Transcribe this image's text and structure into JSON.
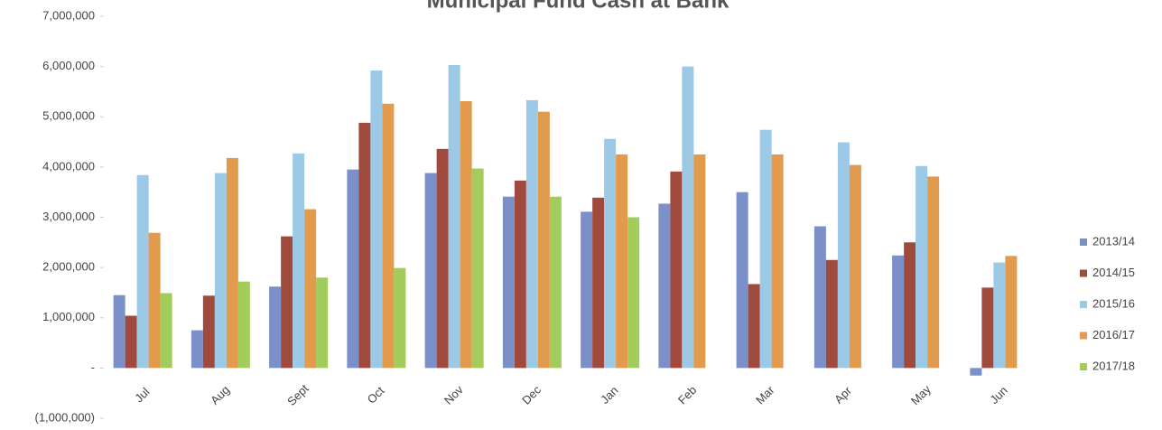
{
  "chart_data": {
    "type": "bar",
    "title": "Municipal Fund Cash at Bank",
    "categories": [
      "Jul",
      "Aug",
      "Sept",
      "Oct",
      "Nov",
      "Dec",
      "Jan",
      "Feb",
      "Mar",
      "Apr",
      "May",
      "Jun"
    ],
    "series": [
      {
        "name": "2013/14",
        "color": "#7b8fc9",
        "values": [
          1450000,
          750000,
          1620000,
          3950000,
          3880000,
          3410000,
          3110000,
          3270000,
          3500000,
          2820000,
          2240000,
          -150000
        ]
      },
      {
        "name": "2014/15",
        "color": "#a04a3e",
        "values": [
          1040000,
          1440000,
          2620000,
          4880000,
          4360000,
          3730000,
          3390000,
          3910000,
          1670000,
          2150000,
          2500000,
          1600000
        ]
      },
      {
        "name": "2015/16",
        "color": "#9ccae6",
        "values": [
          3840000,
          3880000,
          4270000,
          5920000,
          6030000,
          5330000,
          4560000,
          6000000,
          4740000,
          4490000,
          4020000,
          2100000
        ]
      },
      {
        "name": "2016/17",
        "color": "#e29a4d",
        "values": [
          2690000,
          4180000,
          3160000,
          5260000,
          5310000,
          5100000,
          4250000,
          4250000,
          4250000,
          4040000,
          3810000,
          2230000
        ]
      },
      {
        "name": "2017/18",
        "color": "#a2cc5c",
        "values": [
          1490000,
          1720000,
          1800000,
          1990000,
          3970000,
          3410000,
          3000000,
          null,
          null,
          null,
          null,
          null
        ]
      }
    ],
    "ylim": [
      -1000000,
      7000000
    ],
    "yticks": [
      {
        "value": -1000000,
        "label": "(1,000,000)"
      },
      {
        "value": 0,
        "label": "-"
      },
      {
        "value": 1000000,
        "label": "1,000,000"
      },
      {
        "value": 2000000,
        "label": "2,000,000"
      },
      {
        "value": 3000000,
        "label": "3,000,000"
      },
      {
        "value": 4000000,
        "label": "4,000,000"
      },
      {
        "value": 5000000,
        "label": "5,000,000"
      },
      {
        "value": 6000000,
        "label": "6,000,000"
      },
      {
        "value": 7000000,
        "label": "7,000,000"
      }
    ],
    "grid": false,
    "legend": "right"
  }
}
